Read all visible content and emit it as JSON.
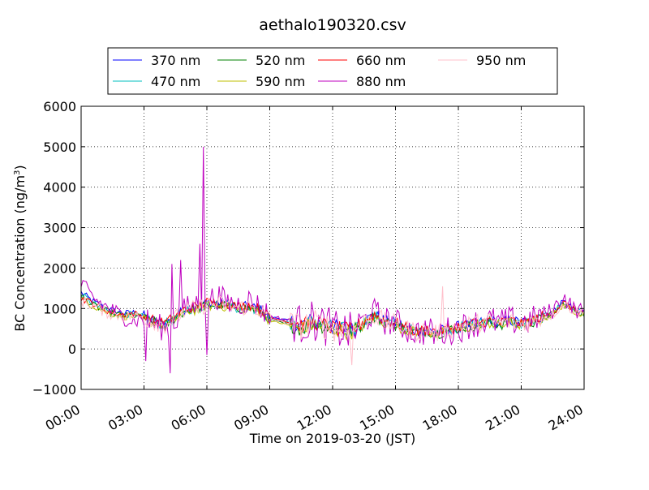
{
  "chart_data": {
    "type": "line",
    "title": "aethalo190320.csv",
    "xlabel": "Time on 2019-03-20 (JST)",
    "ylabel_main": "BC Concentration (ng/m",
    "ylabel_sup": "3",
    "ylabel_close": ")",
    "xlim_hours": [
      0,
      24
    ],
    "ylim": [
      -1000,
      6000
    ],
    "grid": true,
    "legend_position": "top-center",
    "x_ticks": [
      {
        "h": 0,
        "label": "00:00"
      },
      {
        "h": 3,
        "label": "03:00"
      },
      {
        "h": 6,
        "label": "06:00"
      },
      {
        "h": 9,
        "label": "09:00"
      },
      {
        "h": 12,
        "label": "12:00"
      },
      {
        "h": 15,
        "label": "15:00"
      },
      {
        "h": 18,
        "label": "18:00"
      },
      {
        "h": 21,
        "label": "21:00"
      },
      {
        "h": 24,
        "label": "24:00"
      }
    ],
    "y_ticks": [
      {
        "v": 6000,
        "label": "6000"
      },
      {
        "v": 5000,
        "label": "5000"
      },
      {
        "v": 4000,
        "label": "4000"
      },
      {
        "v": 3000,
        "label": "3000"
      },
      {
        "v": 2000,
        "label": "2000"
      },
      {
        "v": 1000,
        "label": "1000"
      },
      {
        "v": 0,
        "label": "0"
      },
      {
        "v": -1000,
        "label": "−1000"
      }
    ],
    "series": [
      {
        "name": "370 nm",
        "color": "#0000ff",
        "x_hours": [
          0,
          0.5,
          1,
          1.5,
          2,
          2.5,
          3,
          3.5,
          4,
          4.5,
          5,
          5.5,
          6,
          6.5,
          7,
          7.5,
          8,
          8.5,
          9,
          10,
          10.5,
          11,
          11.5,
          12,
          12.5,
          13,
          13.5,
          14,
          14.5,
          15,
          15.5,
          16,
          16.5,
          17,
          17.5,
          18,
          18.5,
          19,
          19.5,
          20,
          20.5,
          21,
          21.5,
          22,
          22.5,
          23,
          23.5,
          24
        ],
        "values": [
          1400,
          1200,
          1050,
          950,
          880,
          900,
          820,
          700,
          620,
          800,
          1000,
          1050,
          1150,
          1150,
          1100,
          1050,
          1050,
          1000,
          800,
          700,
          600,
          700,
          650,
          550,
          500,
          480,
          700,
          850,
          700,
          650,
          550,
          450,
          500,
          420,
          500,
          550,
          600,
          650,
          700,
          650,
          700,
          650,
          700,
          800,
          900,
          1200,
          1000,
          900
        ]
      },
      {
        "name": "470 nm",
        "color": "#00bfbf",
        "x_hours": [
          0,
          0.5,
          1,
          1.5,
          2,
          2.5,
          3,
          3.5,
          4,
          4.5,
          5,
          5.5,
          6,
          6.5,
          7,
          7.5,
          8,
          8.5,
          9,
          10,
          10.5,
          11,
          11.5,
          12,
          12.5,
          13,
          13.5,
          14,
          14.5,
          15,
          15.5,
          16,
          16.5,
          17,
          17.5,
          18,
          18.5,
          19,
          19.5,
          20,
          20.5,
          21,
          21.5,
          22,
          22.5,
          23,
          23.5,
          24
        ],
        "values": [
          1350,
          1150,
          1000,
          900,
          850,
          850,
          780,
          680,
          600,
          780,
          980,
          1000,
          1100,
          1120,
          1080,
          1020,
          1020,
          980,
          750,
          650,
          550,
          650,
          600,
          520,
          480,
          460,
          680,
          820,
          680,
          620,
          520,
          430,
          480,
          400,
          480,
          520,
          580,
          620,
          680,
          620,
          680,
          620,
          680,
          780,
          880,
          1150,
          980,
          880
        ]
      },
      {
        "name": "520 nm",
        "color": "#008000",
        "x_hours": [
          0,
          0.5,
          1,
          1.5,
          2,
          2.5,
          3,
          3.5,
          4,
          4.5,
          5,
          5.5,
          6,
          6.5,
          7,
          7.5,
          8,
          8.5,
          9,
          10,
          10.5,
          11,
          11.5,
          12,
          12.5,
          13,
          13.5,
          14,
          14.5,
          15,
          15.5,
          16,
          16.5,
          17,
          17.5,
          18,
          18.5,
          19,
          19.5,
          20,
          20.5,
          21,
          21.5,
          22,
          22.5,
          23,
          23.5,
          24
        ],
        "values": [
          1300,
          1100,
          980,
          880,
          820,
          820,
          760,
          660,
          580,
          760,
          960,
          980,
          1080,
          1100,
          1060,
          1000,
          1000,
          960,
          720,
          600,
          500,
          620,
          580,
          500,
          460,
          440,
          660,
          800,
          660,
          600,
          500,
          410,
          460,
          380,
          460,
          500,
          560,
          600,
          660,
          600,
          660,
          600,
          660,
          760,
          860,
          1120,
          960,
          860
        ]
      },
      {
        "name": "590 nm",
        "color": "#bfbf00",
        "x_hours": [
          0,
          0.5,
          1,
          1.5,
          2,
          2.5,
          3,
          3.5,
          4,
          4.5,
          5,
          5.5,
          6,
          6.5,
          7,
          7.5,
          8,
          8.5,
          9,
          10,
          10.5,
          11,
          11.5,
          12,
          12.5,
          13,
          13.5,
          14,
          14.5,
          15,
          15.5,
          16,
          16.5,
          17,
          17.5,
          18,
          18.5,
          19,
          19.5,
          20,
          20.5,
          21,
          21.5,
          22,
          22.5,
          23,
          23.5,
          24
        ],
        "values": [
          1250,
          1080,
          960,
          860,
          800,
          800,
          740,
          640,
          560,
          740,
          940,
          960,
          1060,
          1080,
          1040,
          980,
          980,
          940,
          700,
          580,
          480,
          600,
          560,
          480,
          440,
          420,
          640,
          780,
          640,
          580,
          480,
          390,
          440,
          360,
          440,
          480,
          540,
          580,
          640,
          580,
          640,
          580,
          640,
          740,
          840,
          1100,
          940,
          840
        ]
      },
      {
        "name": "660 nm",
        "color": "#ff0000",
        "x_hours": [
          0,
          0.5,
          1,
          1.5,
          2,
          2.5,
          3,
          3.5,
          4,
          4.5,
          5,
          5.5,
          6,
          6.5,
          7,
          7.5,
          8,
          8.5,
          9,
          10,
          10.5,
          11,
          11.5,
          12,
          12.5,
          13,
          13.5,
          14,
          14.5,
          15,
          15.5,
          16,
          16.5,
          17,
          17.5,
          18,
          18.5,
          19,
          19.5,
          20,
          20.5,
          21,
          21.5,
          22,
          22.5,
          23,
          23.5,
          24
        ],
        "values": [
          1250,
          1150,
          1000,
          900,
          850,
          880,
          800,
          700,
          650,
          800,
          1000,
          1050,
          1150,
          1150,
          1100,
          1050,
          1100,
          1000,
          780,
          650,
          580,
          680,
          620,
          520,
          480,
          460,
          700,
          850,
          700,
          650,
          520,
          430,
          480,
          420,
          500,
          560,
          620,
          660,
          700,
          640,
          700,
          640,
          700,
          800,
          880,
          1150,
          980,
          880
        ]
      },
      {
        "name": "880 nm",
        "color": "#bf00bf",
        "x_hours": [
          0,
          0.5,
          1,
          1.5,
          2,
          2.5,
          3,
          3.5,
          4,
          4.5,
          5,
          5.5,
          6,
          6.5,
          7,
          7.5,
          8,
          8.5,
          9,
          10,
          10.5,
          11,
          11.5,
          12,
          12.5,
          13,
          13.5,
          14,
          14.5,
          15,
          15.5,
          16,
          16.5,
          17,
          17.5,
          18,
          18.5,
          19,
          19.5,
          20,
          20.5,
          21,
          21.5,
          22,
          22.5,
          23,
          23.5,
          24
        ],
        "values": [
          1600,
          1300,
          1100,
          950,
          800,
          700,
          750,
          600,
          500,
          700,
          1000,
          1100,
          1200,
          1300,
          1150,
          1100,
          1200,
          1050,
          800,
          700,
          600,
          700,
          600,
          500,
          450,
          400,
          700,
          900,
          700,
          650,
          500,
          400,
          450,
          350,
          450,
          500,
          600,
          650,
          700,
          650,
          700,
          650,
          700,
          850,
          950,
          1300,
          1000,
          900
        ]
      },
      {
        "name": "950 nm",
        "color": "#ffc0cb",
        "x_hours": [
          0,
          0.5,
          1,
          1.5,
          2,
          2.5,
          3,
          3.5,
          4,
          4.5,
          5,
          5.5,
          6,
          6.5,
          7,
          7.5,
          8,
          8.5,
          9,
          10,
          10.5,
          11,
          11.5,
          12,
          12.5,
          13,
          13.5,
          14,
          14.5,
          15,
          15.5,
          16,
          16.5,
          17,
          17.5,
          18,
          18.5,
          19,
          19.5,
          20,
          20.5,
          21,
          21.5,
          22,
          22.5,
          23,
          23.5,
          24
        ],
        "values": [
          1200,
          1100,
          950,
          850,
          800,
          820,
          760,
          660,
          600,
          760,
          960,
          1000,
          1100,
          1120,
          1080,
          1020,
          1050,
          960,
          740,
          620,
          560,
          660,
          600,
          520,
          480,
          440,
          680,
          820,
          680,
          620,
          500,
          420,
          470,
          400,
          480,
          540,
          600,
          640,
          680,
          620,
          680,
          620,
          680,
          780,
          860,
          1120,
          960,
          860
        ]
      }
    ],
    "spikes": [
      {
        "series": "880 nm",
        "x_hours": 5.85,
        "value": 5000
      },
      {
        "series": "880 nm",
        "x_hours": 5.7,
        "value": 2600
      },
      {
        "series": "880 nm",
        "x_hours": 4.3,
        "value": 2100
      },
      {
        "series": "880 nm",
        "x_hours": 4.75,
        "value": 2200
      },
      {
        "series": "880 nm",
        "x_hours": 4.25,
        "value": -600
      },
      {
        "series": "880 nm",
        "x_hours": 6.0,
        "value": -150
      },
      {
        "series": "880 nm",
        "x_hours": 3.05,
        "value": -300
      },
      {
        "series": "950 nm",
        "x_hours": 17.25,
        "value": 1550
      },
      {
        "series": "950 nm",
        "x_hours": 12.95,
        "value": -400
      }
    ]
  }
}
